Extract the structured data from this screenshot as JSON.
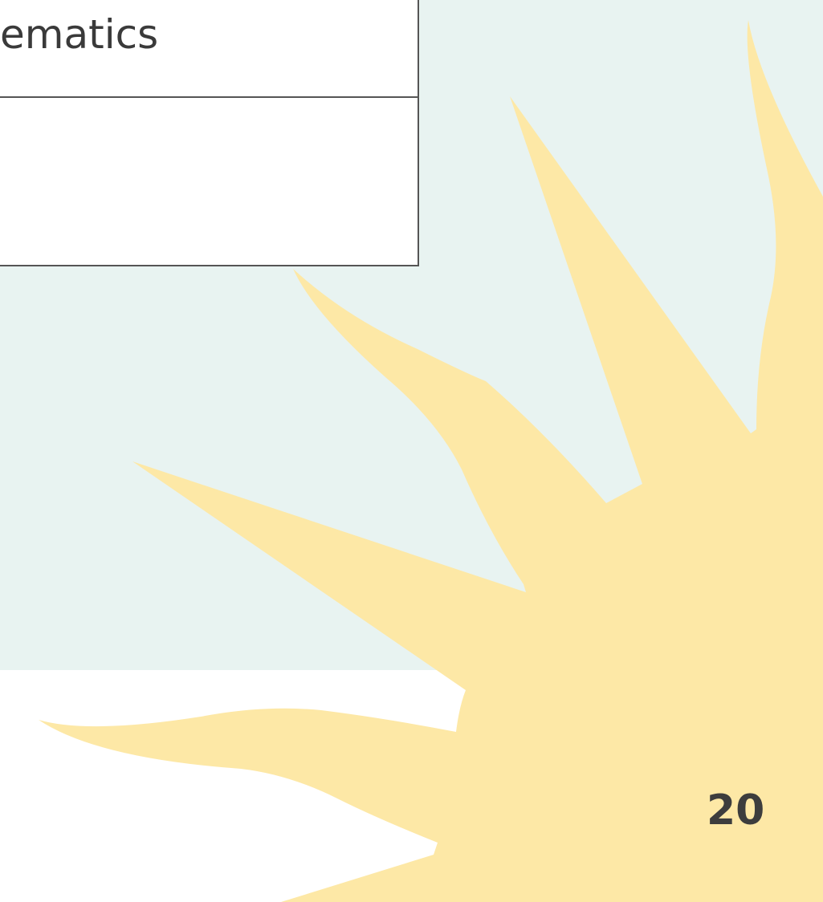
{
  "slide": {
    "table": {
      "rows": [
        [
          "ematics"
        ]
      ]
    },
    "page_number": 20
  }
}
